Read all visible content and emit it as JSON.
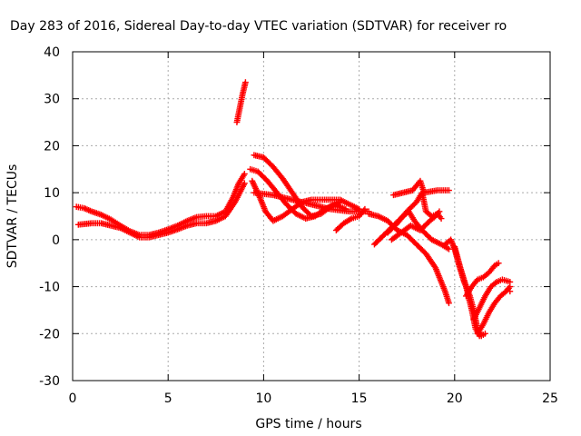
{
  "chart_data": {
    "type": "scatter",
    "title": "Day 283 of 2016, Sidereal Day-to-day VTEC variation (SDTVAR) for receiver ro",
    "xlabel": "GPS time / hours",
    "ylabel": "SDTVAR / TECUs",
    "xlim": [
      0,
      25
    ],
    "ylim": [
      -30,
      40
    ],
    "xticks": [
      0,
      5,
      10,
      15,
      20,
      25
    ],
    "yticks": [
      -30,
      -20,
      -10,
      0,
      10,
      20,
      30,
      40
    ],
    "xtick_labels": [
      "0",
      "5",
      "10",
      "15",
      "20",
      "25"
    ],
    "ytick_labels": [
      "-30",
      "-20",
      "-10",
      "0",
      "10",
      "20",
      "30",
      "40"
    ],
    "grid": true,
    "marker": "+",
    "colors": {
      "series": "#ff0000",
      "grid": "#aaaaaa",
      "axis": "#000000"
    },
    "series": [
      {
        "name": "upper-early-branch",
        "points": [
          [
            0.2,
            7.0
          ],
          [
            0.6,
            6.7
          ],
          [
            1.0,
            6.0
          ],
          [
            1.5,
            5.3
          ],
          [
            2.0,
            4.3
          ],
          [
            2.5,
            3.0
          ],
          [
            3.0,
            1.8
          ],
          [
            3.5,
            1.0
          ],
          [
            4.0,
            1.0
          ],
          [
            4.5,
            1.5
          ],
          [
            5.0,
            2.2
          ],
          [
            5.5,
            3.0
          ],
          [
            6.0,
            4.0
          ],
          [
            6.5,
            4.8
          ],
          [
            7.0,
            5.0
          ],
          [
            7.5,
            5.0
          ],
          [
            8.0,
            6.0
          ],
          [
            8.4,
            9.0
          ],
          [
            8.7,
            12.0
          ],
          [
            9.0,
            14.0
          ]
        ]
      },
      {
        "name": "lower-early-branch",
        "points": [
          [
            0.3,
            3.2
          ],
          [
            1.0,
            3.5
          ],
          [
            1.5,
            3.5
          ],
          [
            2.0,
            3.0
          ],
          [
            2.5,
            2.5
          ],
          [
            3.0,
            1.5
          ],
          [
            3.5,
            0.5
          ],
          [
            4.0,
            0.5
          ],
          [
            4.5,
            1.0
          ],
          [
            5.0,
            1.5
          ],
          [
            5.5,
            2.2
          ],
          [
            6.0,
            3.0
          ],
          [
            6.5,
            3.5
          ],
          [
            7.0,
            3.5
          ],
          [
            7.5,
            4.0
          ],
          [
            8.0,
            5.0
          ],
          [
            8.5,
            8.0
          ],
          [
            9.0,
            12.0
          ]
        ]
      },
      {
        "name": "isolated-high-arc",
        "points": [
          [
            8.6,
            25.0
          ],
          [
            8.75,
            28.0
          ],
          [
            8.9,
            31.0
          ],
          [
            9.05,
            33.5
          ]
        ]
      },
      {
        "name": "afternoon-peak-arc",
        "points": [
          [
            9.5,
            18.0
          ],
          [
            10.0,
            17.5
          ],
          [
            10.5,
            15.5
          ],
          [
            11.0,
            13.0
          ],
          [
            11.5,
            10.0
          ],
          [
            12.0,
            7.0
          ],
          [
            12.5,
            5.0
          ],
          [
            13.0,
            5.5
          ],
          [
            13.5,
            7.0
          ],
          [
            14.0,
            8.0
          ]
        ]
      },
      {
        "name": "afternoon-mid-arc",
        "points": [
          [
            9.3,
            15.0
          ],
          [
            9.7,
            14.5
          ],
          [
            10.2,
            12.5
          ],
          [
            10.7,
            10.0
          ],
          [
            11.2,
            7.5
          ],
          [
            11.7,
            5.5
          ],
          [
            12.2,
            4.5
          ],
          [
            12.7,
            5.0
          ],
          [
            13.2,
            6.5
          ],
          [
            13.7,
            7.5
          ],
          [
            14.3,
            6.5
          ]
        ]
      },
      {
        "name": "afternoon-drop-arc",
        "points": [
          [
            9.4,
            12.5
          ],
          [
            9.8,
            9.0
          ],
          [
            10.1,
            6.0
          ],
          [
            10.5,
            4.0
          ],
          [
            11.0,
            5.0
          ],
          [
            11.5,
            6.5
          ],
          [
            12.0,
            8.0
          ],
          [
            12.5,
            8.5
          ],
          [
            13.0,
            8.5
          ],
          [
            13.5,
            8.5
          ],
          [
            14.0,
            8.5
          ],
          [
            14.5,
            7.5
          ],
          [
            15.0,
            6.5
          ]
        ]
      },
      {
        "name": "afternoon-flat-arc",
        "points": [
          [
            9.5,
            10.0
          ],
          [
            10.5,
            9.5
          ],
          [
            11.5,
            8.5
          ],
          [
            12.5,
            7.5
          ],
          [
            13.5,
            6.5
          ],
          [
            14.5,
            6.0
          ],
          [
            15.5,
            6.0
          ]
        ]
      },
      {
        "name": "short-dip-arc",
        "points": [
          [
            13.8,
            2.0
          ],
          [
            14.2,
            3.5
          ],
          [
            14.6,
            4.5
          ],
          [
            15.0,
            5.0
          ],
          [
            15.3,
            6.5
          ]
        ]
      },
      {
        "name": "evening-branch-a",
        "points": [
          [
            15.5,
            5.5
          ],
          [
            16.0,
            5.0
          ],
          [
            16.5,
            4.0
          ],
          [
            17.0,
            2.0
          ],
          [
            17.5,
            1.0
          ],
          [
            18.0,
            -1.0
          ],
          [
            18.5,
            -3.0
          ],
          [
            19.0,
            -6.0
          ],
          [
            19.5,
            -11.0
          ],
          [
            19.7,
            -13.5
          ]
        ]
      },
      {
        "name": "evening-branch-b",
        "points": [
          [
            15.8,
            -1.0
          ],
          [
            16.3,
            1.0
          ],
          [
            16.8,
            3.0
          ],
          [
            17.3,
            5.0
          ],
          [
            17.6,
            6.0
          ],
          [
            17.9,
            4.0
          ],
          [
            18.3,
            2.0
          ],
          [
            18.8,
            0.0
          ],
          [
            19.3,
            -1.0
          ],
          [
            19.7,
            -2.0
          ]
        ]
      },
      {
        "name": "evening-branch-c",
        "points": [
          [
            16.5,
            1.5
          ],
          [
            17.0,
            3.5
          ],
          [
            17.5,
            6.0
          ],
          [
            18.0,
            8.0
          ],
          [
            18.3,
            10.0
          ],
          [
            18.5,
            6.0
          ],
          [
            18.8,
            5.0
          ],
          [
            19.1,
            5.5
          ],
          [
            19.3,
            4.5
          ]
        ]
      },
      {
        "name": "evening-branch-d",
        "points": [
          [
            16.7,
            0.0
          ],
          [
            17.2,
            1.5
          ],
          [
            17.7,
            3.0
          ],
          [
            18.2,
            2.0
          ],
          [
            18.7,
            4.0
          ],
          [
            19.0,
            5.0
          ],
          [
            19.2,
            6.0
          ]
        ]
      },
      {
        "name": "scattered-high-points",
        "points": [
          [
            16.8,
            9.5
          ],
          [
            17.8,
            10.5
          ],
          [
            18.0,
            11.5
          ],
          [
            18.2,
            12.5
          ],
          [
            18.4,
            10.0
          ],
          [
            19.1,
            10.5
          ],
          [
            19.4,
            10.5
          ],
          [
            19.7,
            10.5
          ]
        ]
      },
      {
        "name": "late-descent-a",
        "points": [
          [
            19.5,
            -1.0
          ],
          [
            19.8,
            0.0
          ],
          [
            20.0,
            -2.0
          ],
          [
            20.2,
            -5.0
          ],
          [
            20.5,
            -9.0
          ],
          [
            20.8,
            -12.0
          ],
          [
            21.0,
            -15.0
          ],
          [
            21.2,
            -19.0
          ],
          [
            21.4,
            -20.5
          ],
          [
            21.6,
            -20.0
          ]
        ]
      },
      {
        "name": "late-descent-b",
        "points": [
          [
            20.0,
            -1.5
          ],
          [
            20.3,
            -6.0
          ],
          [
            20.6,
            -10.0
          ],
          [
            20.9,
            -15.0
          ],
          [
            21.1,
            -19.0
          ],
          [
            21.3,
            -20.5
          ]
        ]
      },
      {
        "name": "late-recovery-a",
        "points": [
          [
            21.2,
            -20.0
          ],
          [
            21.5,
            -18.0
          ],
          [
            21.8,
            -15.5
          ],
          [
            22.1,
            -13.5
          ],
          [
            22.4,
            -12.0
          ],
          [
            22.7,
            -11.0
          ],
          [
            22.9,
            -10.0
          ]
        ]
      },
      {
        "name": "late-recovery-b",
        "points": [
          [
            21.0,
            -17.0
          ],
          [
            21.3,
            -14.5
          ],
          [
            21.6,
            -12.0
          ],
          [
            21.9,
            -10.0
          ],
          [
            22.2,
            -9.0
          ],
          [
            22.5,
            -8.5
          ],
          [
            22.9,
            -9.0
          ]
        ]
      },
      {
        "name": "late-small-loop",
        "points": [
          [
            20.6,
            -12.0
          ],
          [
            20.9,
            -10.0
          ],
          [
            21.2,
            -8.5
          ],
          [
            21.5,
            -8.0
          ],
          [
            21.8,
            -7.0
          ],
          [
            22.1,
            -5.5
          ],
          [
            22.3,
            -5.0
          ]
        ]
      },
      {
        "name": "late-edge",
        "points": [
          [
            22.8,
            -10.5
          ],
          [
            22.9,
            -11.0
          ]
        ]
      }
    ]
  }
}
